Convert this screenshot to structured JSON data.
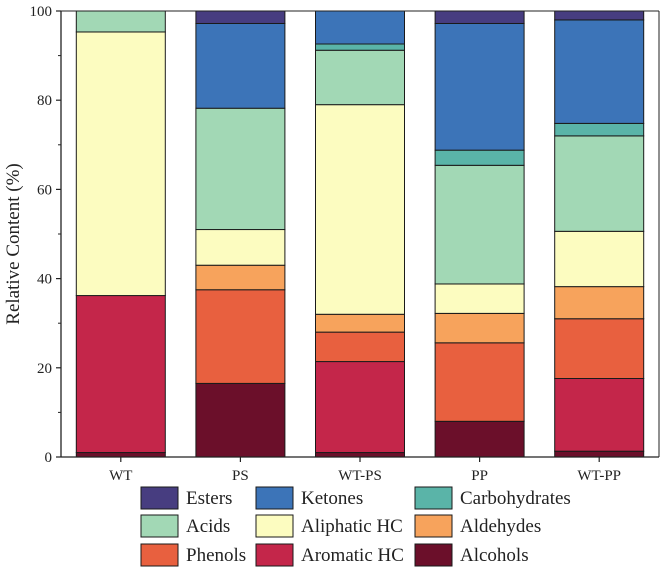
{
  "chart_data": {
    "type": "bar",
    "stacked": true,
    "categories": [
      "WT",
      "PS",
      "WT-PS",
      "PP",
      "WT-PP"
    ],
    "ylabel": "Relative Content (%)",
    "xlabel": "",
    "ylim": [
      0,
      100
    ],
    "yticks": [
      0,
      20,
      40,
      60,
      80,
      100
    ],
    "grid": false,
    "legend_position": "bottom",
    "series": [
      {
        "name": "Alcohols",
        "color": "#6b0f2a",
        "values": [
          1.0,
          16.5,
          1.0,
          8.0,
          1.3
        ]
      },
      {
        "name": "Aromatic HC",
        "color": "#c4264a",
        "values": [
          35.2,
          0.0,
          20.4,
          0.0,
          16.3
        ]
      },
      {
        "name": "Phenols",
        "color": "#e8603f",
        "values": [
          0.0,
          21.0,
          6.6,
          17.6,
          13.4
        ]
      },
      {
        "name": "Aldehydes",
        "color": "#f7a35c",
        "values": [
          0.0,
          5.5,
          4.0,
          6.6,
          7.2
        ]
      },
      {
        "name": "Aliphatic HC",
        "color": "#fcfcc0",
        "values": [
          59.1,
          8.0,
          47.0,
          6.6,
          12.4
        ]
      },
      {
        "name": "Acids",
        "color": "#a2d8b5",
        "values": [
          4.7,
          27.2,
          12.2,
          26.6,
          21.4
        ]
      },
      {
        "name": "Carbohydrates",
        "color": "#5ab4a8",
        "values": [
          0.0,
          0.0,
          1.4,
          3.4,
          2.8
        ]
      },
      {
        "name": "Ketones",
        "color": "#3c74b8",
        "values": [
          0.0,
          19.0,
          7.4,
          28.4,
          23.2
        ]
      },
      {
        "name": "Esters",
        "color": "#473d80",
        "values": [
          0.0,
          2.8,
          0.0,
          2.8,
          2.0
        ]
      }
    ],
    "legend_order": [
      "Esters",
      "Ketones",
      "Carbohydrates",
      "Acids",
      "Aliphatic HC",
      "Aldehydes",
      "Phenols",
      "Aromatic HC",
      "Alcohols"
    ]
  }
}
